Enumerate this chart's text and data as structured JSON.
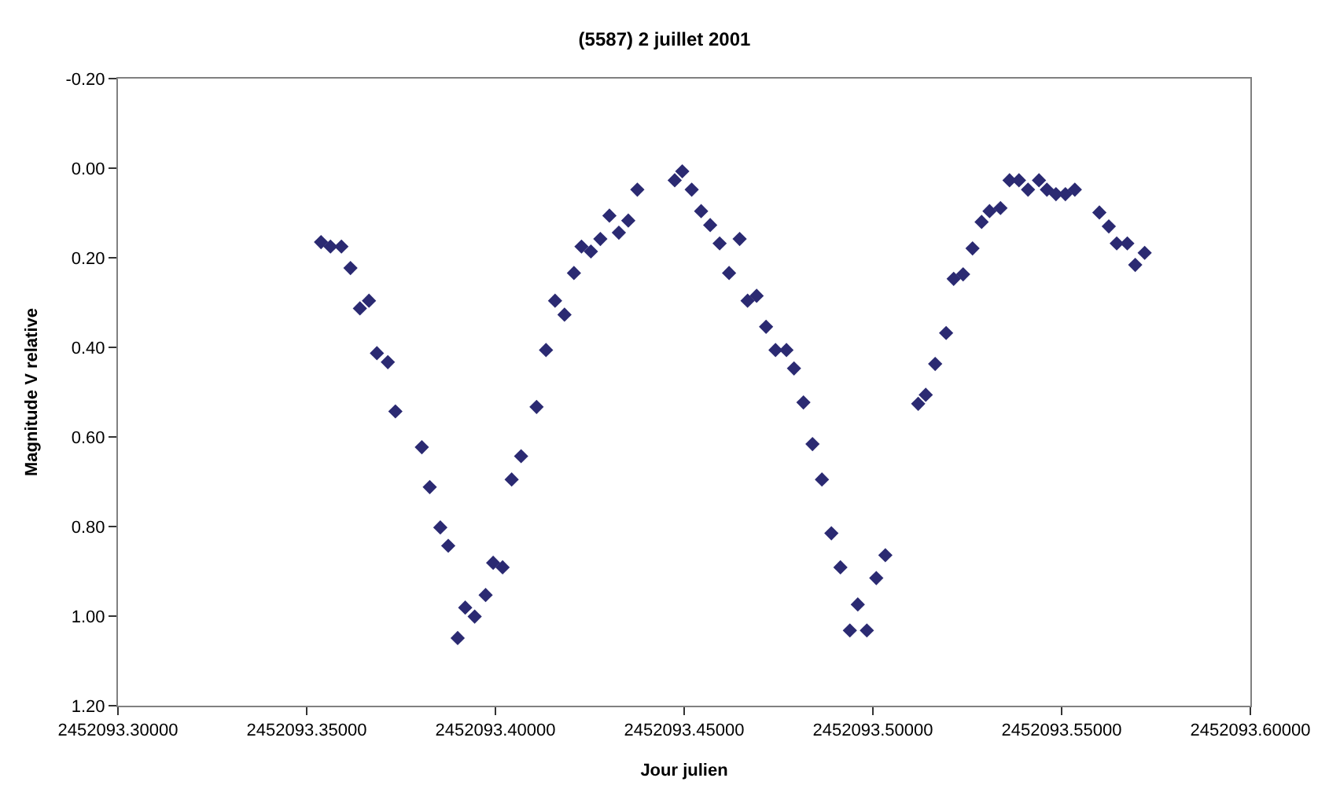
{
  "chart_data": {
    "type": "scatter",
    "title": "(5587) 2 juillet 2001",
    "xlabel": "Jour julien",
    "ylabel": "Magnitude V relative",
    "marker": "diamond",
    "xlim": [
      2452093.3,
      2452093.6
    ],
    "xticks": [
      {
        "value": 2452093.3,
        "label": "2452093.30000"
      },
      {
        "value": 2452093.35,
        "label": "2452093.35000"
      },
      {
        "value": 2452093.4,
        "label": "2452093.40000"
      },
      {
        "value": 2452093.45,
        "label": "2452093.45000"
      },
      {
        "value": 2452093.5,
        "label": "2452093.50000"
      },
      {
        "value": 2452093.55,
        "label": "2452093.55000"
      },
      {
        "value": 2452093.6,
        "label": "2452093.60000"
      }
    ],
    "ylim": [
      1.2,
      -0.2
    ],
    "yticks": [
      {
        "value": -0.2,
        "label": "-0.20"
      },
      {
        "value": 0,
        "label": "0.00"
      },
      {
        "value": 0.2,
        "label": "0.20"
      },
      {
        "value": 0.4,
        "label": "0.40"
      },
      {
        "value": 0.6,
        "label": "0.60"
      },
      {
        "value": 0.8,
        "label": "0.80"
      },
      {
        "value": 1.0,
        "label": "1.00"
      },
      {
        "value": 1.2,
        "label": "1.20"
      }
    ],
    "series": [
      {
        "color": "#2b2a72",
        "x": [
          2452093.3538,
          2452093.3563,
          2452093.3592,
          2452093.3616,
          2452093.3641,
          2452093.3665,
          2452093.3686,
          2452093.3715,
          2452093.3735,
          2452093.3805,
          2452093.3826,
          2452093.3854,
          2452093.3875,
          2452093.39,
          2452093.392,
          2452093.3945,
          2452093.3974,
          2452093.3994,
          2452093.4019,
          2452093.4043,
          2452093.4068,
          2452093.4109,
          2452093.4134,
          2452093.4158,
          2452093.4183,
          2452093.4208,
          2452093.4228,
          2452093.4253,
          2452093.4278,
          2452093.4302,
          2452093.4327,
          2452093.4352,
          2452093.4376,
          2452093.4475,
          2452093.4495,
          2452093.452,
          2452093.4545,
          2452093.4569,
          2452093.4594,
          2452093.4619,
          2452093.4647,
          2452093.4668,
          2452093.4692,
          2452093.4717,
          2452093.4742,
          2452093.4771,
          2452093.4791,
          2452093.4816,
          2452093.484,
          2452093.4865,
          2452093.489,
          2452093.4914,
          2452093.4939,
          2452093.496,
          2452093.4984,
          2452093.5009,
          2452093.5033,
          2452093.512,
          2452093.514,
          2452093.5165,
          2452093.5194,
          2452093.5214,
          2452093.5239,
          2452093.5264,
          2452093.5288,
          2452093.5309,
          2452093.5338,
          2452093.5362,
          2452093.5387,
          2452093.5411,
          2452093.544,
          2452093.5461,
          2452093.5485,
          2452093.551,
          2452093.5535,
          2452093.56,
          2452093.5625,
          2452093.5646,
          2452093.5674,
          2452093.5695,
          2452093.572
        ],
        "values": [
          0.165,
          0.175,
          0.175,
          0.223,
          0.313,
          0.296,
          0.413,
          0.433,
          0.543,
          0.623,
          0.712,
          0.802,
          0.843,
          1.049,
          0.981,
          1.001,
          0.953,
          0.881,
          0.891,
          0.695,
          0.643,
          0.533,
          0.406,
          0.296,
          0.327,
          0.234,
          0.175,
          0.186,
          0.158,
          0.106,
          0.144,
          0.117,
          0.048,
          0.027,
          0.007,
          0.048,
          0.096,
          0.127,
          0.168,
          0.234,
          0.158,
          0.296,
          0.285,
          0.354,
          0.406,
          0.406,
          0.447,
          0.523,
          0.616,
          0.695,
          0.815,
          0.891,
          1.032,
          0.974,
          1.032,
          0.915,
          0.864,
          0.526,
          0.506,
          0.437,
          0.368,
          0.247,
          0.237,
          0.179,
          0.12,
          0.096,
          0.089,
          0.027,
          0.027,
          0.048,
          0.027,
          0.048,
          0.058,
          0.058,
          0.048,
          0.099,
          0.13,
          0.168,
          0.168,
          0.216,
          0.189
        ]
      }
    ]
  }
}
